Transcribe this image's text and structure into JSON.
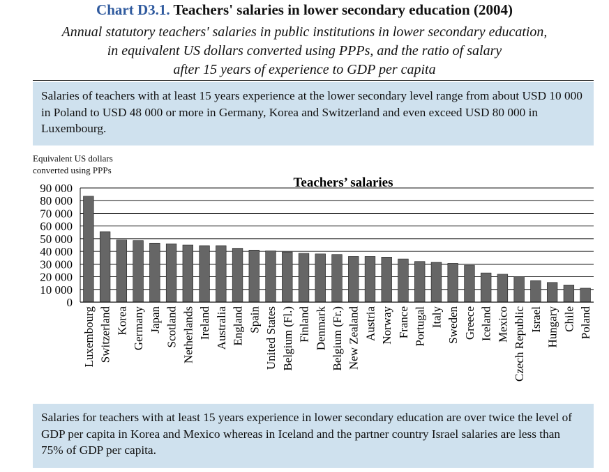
{
  "header": {
    "chart_label": "Chart D3.1.",
    "chart_title": "Teachers' salaries in lower secondary education (2004)",
    "subtitle_lines": [
      "Annual statutory teachers' salaries in public institutions in lower secondary education,",
      "in equivalent US dollars converted using PPPs, and the ratio of salary",
      "after 15 years of experience to GDP per capita"
    ]
  },
  "summary_top": "Salaries of teachers with at least 15 years experience at the lower secondary level range from about USD 10 000 in Poland to USD 48 000 or more in Germany, Korea and Switzerland and even exceed USD 80 000 in Luxembourg.",
  "summary_bottom": "Salaries for teachers with at least 15 years experience in lower secondary education are over twice the level of GDP per capita in Korea and Mexico whereas in Iceland and the partner country Israel salaries are less than 75% of GDP per capita.",
  "axis_label_lines": [
    "Equivalent US dollars",
    "converted using PPPs"
  ],
  "colors": {
    "bar": "#666666",
    "box": "#cfe1ee",
    "title_accent": "#2f5a9e"
  },
  "chart_data": {
    "type": "bar",
    "title": "Teachers’ salaries",
    "ylabel": "Equivalent US dollars converted using PPPs",
    "ylim": [
      0,
      90000
    ],
    "yticks": [
      0,
      10000,
      20000,
      30000,
      40000,
      50000,
      60000,
      70000,
      80000,
      90000
    ],
    "ytick_labels": [
      "0",
      "10 000",
      "20 000",
      "30 000",
      "40 000",
      "50 000",
      "60 000",
      "70 000",
      "80 000",
      "90 000"
    ],
    "grid": true,
    "categories": [
      "Luxembourg",
      "Switzerland",
      "Korea",
      "Germany",
      "Japan",
      "Scotland",
      "Netherlands",
      "Ireland",
      "Australia",
      "England",
      "Spain",
      "United States",
      "Belgium (Fl.)",
      "Finland",
      "Denmark",
      "Belgium (Fr.)",
      "New Zealand",
      "Austria",
      "Norway",
      "France",
      "Portugal",
      "Italy",
      "Sweden",
      "Greece",
      "Iceland",
      "Mexico",
      "Czech Republic",
      "Israel",
      "Hungary",
      "Chile",
      "Poland"
    ],
    "values": [
      83500,
      55500,
      49000,
      48500,
      46500,
      46000,
      45000,
      44500,
      44500,
      42500,
      41000,
      40500,
      39500,
      38500,
      38000,
      37500,
      36000,
      36000,
      35500,
      34000,
      32000,
      31500,
      30500,
      29000,
      23000,
      22000,
      20000,
      17000,
      15500,
      13500,
      11000
    ]
  }
}
